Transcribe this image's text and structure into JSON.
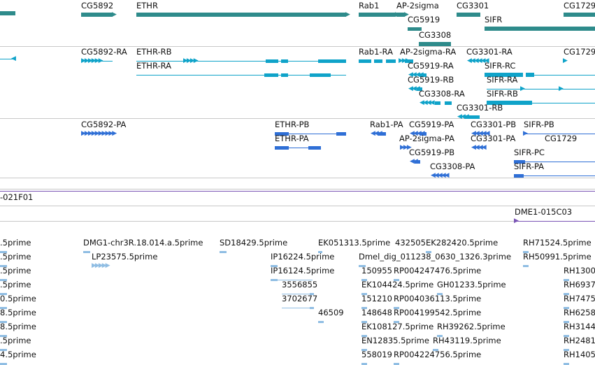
{
  "colors": {
    "gene": "#2e8b8b",
    "mrna": "#0fa3c9",
    "protein": "#2f6fd6",
    "clone": "#7a54b5",
    "est": "#8fbde3",
    "separator": "#c8c8c8"
  },
  "tracks": {
    "genes": {
      "items": [
        {
          "label": "CG5892"
        },
        {
          "label": "ETHR"
        },
        {
          "label": "Rab1"
        },
        {
          "label": "AP-2sigma"
        },
        {
          "label": "CG3301"
        },
        {
          "label": "CG1729"
        },
        {
          "label": "CG5919"
        },
        {
          "label": "SIFR"
        },
        {
          "label": "CG3308"
        }
      ]
    },
    "transcripts": {
      "items": [
        {
          "label": "CG5892-RA"
        },
        {
          "label": "ETHR-RB"
        },
        {
          "label": "Rab1-RA"
        },
        {
          "label": "AP-2sigma-RA"
        },
        {
          "label": "CG3301-RA"
        },
        {
          "label": "CG1729"
        },
        {
          "label": "ETHR-RA"
        },
        {
          "label": "CG5919-RA"
        },
        {
          "label": "SIFR-RC"
        },
        {
          "label": "CG5919-RB"
        },
        {
          "label": "SIFR-RA"
        },
        {
          "label": "CG3308-RA"
        },
        {
          "label": "SIFR-RB"
        },
        {
          "label": "CG3301-RB"
        }
      ]
    },
    "proteins": {
      "items": [
        {
          "label": "CG5892-PA"
        },
        {
          "label": "ETHR-PB"
        },
        {
          "label": "Rab1-PA"
        },
        {
          "label": "CG5919-PA"
        },
        {
          "label": "CG3301-PB"
        },
        {
          "label": "SIFR-PB"
        },
        {
          "label": "ETHR-PA"
        },
        {
          "label": "AP-2sigma-PA"
        },
        {
          "label": "CG3301-PA"
        },
        {
          "label": "CG5919-PB"
        },
        {
          "label": "SIFR-PC"
        },
        {
          "label": "CG1729"
        },
        {
          "label": "CG3308-PA"
        },
        {
          "label": "SIFR-PA"
        }
      ]
    },
    "clones": {
      "items": [
        {
          "label": "-021F01"
        },
        {
          "label": "DME1-015C03"
        }
      ]
    },
    "ests": {
      "items": [
        {
          "label": ".5prime"
        },
        {
          "label": "DMG1-chr3R.18.014.a.5prime"
        },
        {
          "label": "SD18429.5prime"
        },
        {
          "label": "EK051313.5prime"
        },
        {
          "label": "432505"
        },
        {
          "label": "EK282420.5prime"
        },
        {
          "label": "RH71524.5prime"
        },
        {
          "label": ".5prime"
        },
        {
          "label": "LP23575.5prime"
        },
        {
          "label": "IP16224.5prime"
        },
        {
          "label": "Dmel_dig_011238_0630_1326.3prime"
        },
        {
          "label": "RH50991.5prime"
        },
        {
          "label": ".5prime"
        },
        {
          "label": "IP16124.5prime"
        },
        {
          "label": "150955"
        },
        {
          "label": "RP004247476.5prime"
        },
        {
          "label": "RH1300"
        },
        {
          "label": ".5prime"
        },
        {
          "label": "3556855"
        },
        {
          "label": "EK104424.5prime"
        },
        {
          "label": "GH01233.5prime"
        },
        {
          "label": "RH6937"
        },
        {
          "label": "0.5prime"
        },
        {
          "label": "3702677"
        },
        {
          "label": "151210"
        },
        {
          "label": "RP004036113.5prime"
        },
        {
          "label": "RH7475"
        },
        {
          "label": "8.5prime"
        },
        {
          "label": "46509"
        },
        {
          "label": "148648"
        },
        {
          "label": "RP004199542.5prime"
        },
        {
          "label": "RH6258"
        },
        {
          "label": "8.5prime"
        },
        {
          "label": "EK108127.5prime"
        },
        {
          "label": "RH39262.5prime"
        },
        {
          "label": "RH3144"
        },
        {
          "label": ".5prime"
        },
        {
          "label": "EN12835.5prime"
        },
        {
          "label": "RH43119.5prime"
        },
        {
          "label": "RH2481"
        },
        {
          "label": "4.5prime"
        },
        {
          "label": "558019"
        },
        {
          "label": "RP004224756.5prime"
        },
        {
          "label": "RH1405"
        }
      ]
    }
  }
}
